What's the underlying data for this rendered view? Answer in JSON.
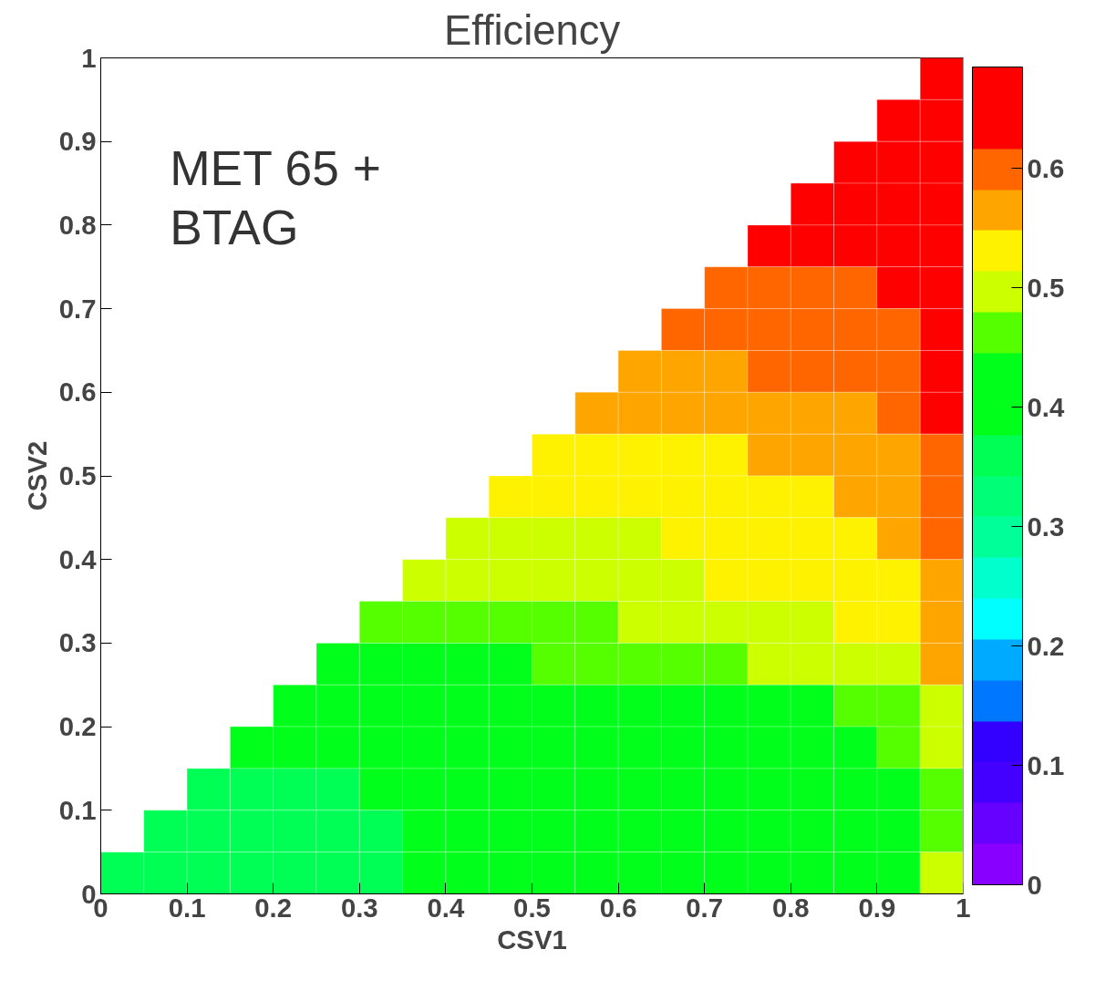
{
  "chart_data": {
    "type": "heatmap",
    "title": "Efficiency",
    "xlabel": "CSV1",
    "ylabel": "CSV2",
    "annotations": [
      "MET 65 +\nBTAG"
    ],
    "x": [
      0.025,
      0.075,
      0.125,
      0.175,
      0.225,
      0.275,
      0.325,
      0.375,
      0.425,
      0.475,
      0.525,
      0.575,
      0.625,
      0.675,
      0.725,
      0.775,
      0.825,
      0.875,
      0.925,
      0.975
    ],
    "y": [
      0.975,
      0.925,
      0.875,
      0.825,
      0.775,
      0.725,
      0.675,
      0.625,
      0.575,
      0.525,
      0.475,
      0.425,
      0.375,
      0.325,
      0.275,
      0.225,
      0.175,
      0.125,
      0.075,
      0.025
    ],
    "xlim": [
      0,
      1
    ],
    "ylim": [
      0,
      1
    ],
    "xticks": [
      0,
      0.1,
      0.2,
      0.3,
      0.4,
      0.5,
      0.6,
      0.7,
      0.8,
      0.9,
      1
    ],
    "yticks": [
      0,
      0.1,
      0.2,
      0.3,
      0.4,
      0.5,
      0.6,
      0.7,
      0.8,
      0.9,
      1
    ],
    "clim": [
      0,
      0.685
    ],
    "cticks": [
      0,
      0.1,
      0.2,
      0.3,
      0.4,
      0.5,
      0.6
    ],
    "colors": [
      "#8800ff",
      "#6600ff",
      "#4400ff",
      "#3300ff",
      "#0077ff",
      "#00aaff",
      "#00ffff",
      "#00ffcc",
      "#00ff99",
      "#00ff77",
      "#00ff55",
      "#00ff1a",
      "#00ff1a",
      "#55ff00",
      "#ccff00",
      "#fff200",
      "#ffa500",
      "#ff6600",
      "#ff0000",
      "#ff0000"
    ],
    "grid": false,
    "cells": [
      [
        null,
        null,
        null,
        null,
        null,
        null,
        null,
        null,
        null,
        null,
        null,
        null,
        null,
        null,
        null,
        null,
        null,
        null,
        null,
        0.66
      ],
      [
        null,
        null,
        null,
        null,
        null,
        null,
        null,
        null,
        null,
        null,
        null,
        null,
        null,
        null,
        null,
        null,
        null,
        null,
        0.66,
        0.66
      ],
      [
        null,
        null,
        null,
        null,
        null,
        null,
        null,
        null,
        null,
        null,
        null,
        null,
        null,
        null,
        null,
        null,
        null,
        0.66,
        0.66,
        0.66
      ],
      [
        null,
        null,
        null,
        null,
        null,
        null,
        null,
        null,
        null,
        null,
        null,
        null,
        null,
        null,
        null,
        null,
        0.66,
        0.66,
        0.66,
        0.66
      ],
      [
        null,
        null,
        null,
        null,
        null,
        null,
        null,
        null,
        null,
        null,
        null,
        null,
        null,
        null,
        null,
        0.66,
        0.66,
        0.66,
        0.66,
        0.66
      ],
      [
        null,
        null,
        null,
        null,
        null,
        null,
        null,
        null,
        null,
        null,
        null,
        null,
        null,
        null,
        0.6,
        0.6,
        0.6,
        0.6,
        0.66,
        0.66
      ],
      [
        null,
        null,
        null,
        null,
        null,
        null,
        null,
        null,
        null,
        null,
        null,
        null,
        null,
        0.6,
        0.6,
        0.6,
        0.6,
        0.6,
        0.6,
        0.66
      ],
      [
        null,
        null,
        null,
        null,
        null,
        null,
        null,
        null,
        null,
        null,
        null,
        null,
        0.565,
        0.565,
        0.565,
        0.6,
        0.6,
        0.6,
        0.6,
        0.66
      ],
      [
        null,
        null,
        null,
        null,
        null,
        null,
        null,
        null,
        null,
        null,
        null,
        0.565,
        0.565,
        0.565,
        0.565,
        0.565,
        0.565,
        0.565,
        0.6,
        0.66
      ],
      [
        null,
        null,
        null,
        null,
        null,
        null,
        null,
        null,
        null,
        null,
        0.53,
        0.53,
        0.53,
        0.53,
        0.53,
        0.565,
        0.565,
        0.565,
        0.565,
        0.6
      ],
      [
        null,
        null,
        null,
        null,
        null,
        null,
        null,
        null,
        null,
        0.53,
        0.53,
        0.53,
        0.53,
        0.53,
        0.53,
        0.53,
        0.53,
        0.565,
        0.565,
        0.6
      ],
      [
        null,
        null,
        null,
        null,
        null,
        null,
        null,
        null,
        0.495,
        0.495,
        0.495,
        0.495,
        0.495,
        0.53,
        0.53,
        0.53,
        0.53,
        0.53,
        0.565,
        0.6
      ],
      [
        null,
        null,
        null,
        null,
        null,
        null,
        null,
        0.495,
        0.495,
        0.495,
        0.495,
        0.495,
        0.495,
        0.495,
        0.53,
        0.53,
        0.53,
        0.53,
        0.53,
        0.565
      ],
      [
        null,
        null,
        null,
        null,
        null,
        null,
        0.46,
        0.46,
        0.46,
        0.46,
        0.46,
        0.46,
        0.495,
        0.495,
        0.495,
        0.495,
        0.495,
        0.53,
        0.53,
        0.565
      ],
      [
        null,
        null,
        null,
        null,
        null,
        0.41,
        0.41,
        0.41,
        0.41,
        0.41,
        0.46,
        0.46,
        0.46,
        0.46,
        0.46,
        0.495,
        0.495,
        0.495,
        0.495,
        0.565
      ],
      [
        null,
        null,
        null,
        null,
        0.41,
        0.41,
        0.41,
        0.41,
        0.41,
        0.41,
        0.41,
        0.41,
        0.41,
        0.41,
        0.41,
        0.41,
        0.41,
        0.46,
        0.46,
        0.495
      ],
      [
        null,
        null,
        null,
        0.41,
        0.41,
        0.41,
        0.41,
        0.41,
        0.41,
        0.41,
        0.41,
        0.41,
        0.41,
        0.41,
        0.41,
        0.41,
        0.41,
        0.41,
        0.46,
        0.495
      ],
      [
        null,
        null,
        0.36,
        0.36,
        0.36,
        0.36,
        0.41,
        0.41,
        0.41,
        0.41,
        0.41,
        0.41,
        0.41,
        0.41,
        0.41,
        0.41,
        0.41,
        0.41,
        0.41,
        0.46
      ],
      [
        null,
        0.36,
        0.36,
        0.36,
        0.36,
        0.36,
        0.36,
        0.41,
        0.41,
        0.41,
        0.41,
        0.41,
        0.41,
        0.41,
        0.41,
        0.41,
        0.41,
        0.41,
        0.41,
        0.46
      ],
      [
        0.36,
        0.36,
        0.36,
        0.36,
        0.36,
        0.36,
        0.36,
        0.41,
        0.41,
        0.41,
        0.41,
        0.41,
        0.41,
        0.41,
        0.41,
        0.41,
        0.41,
        0.41,
        0.41,
        0.495
      ]
    ]
  }
}
